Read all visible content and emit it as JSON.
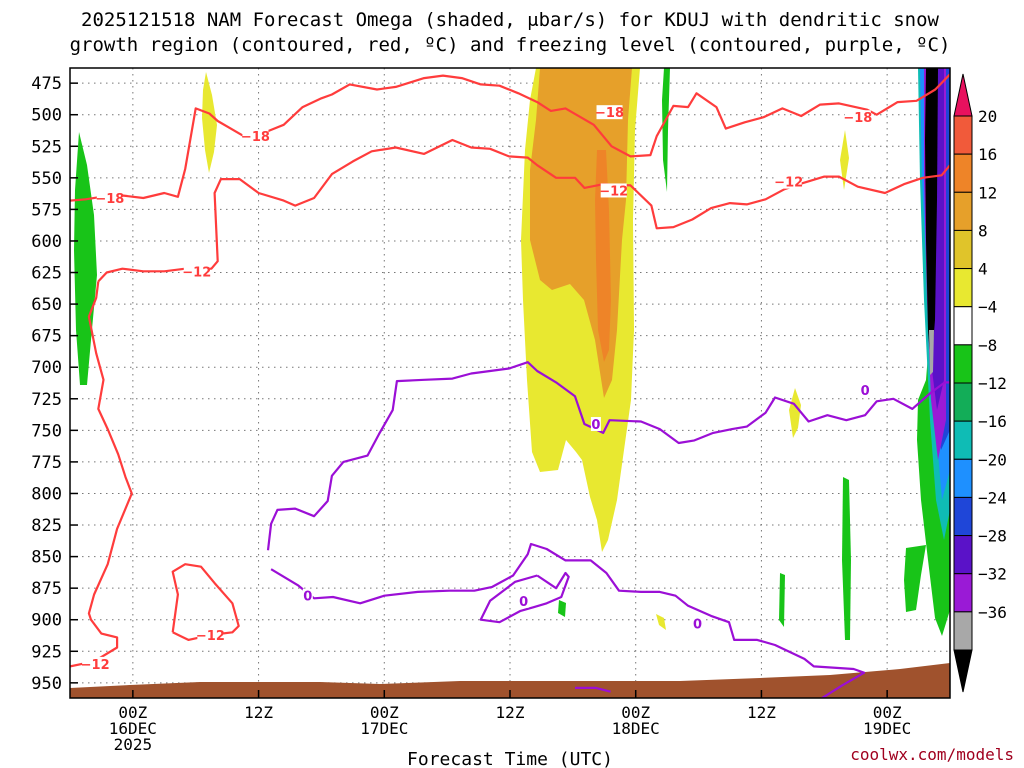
{
  "chart_data": {
    "type": "heatmap",
    "title_lines": [
      "2025121518 NAM Forecast Omega (shaded, μbar/s) for KDUJ with dendritic snow",
      "growth region (contoured, red, ºC) and freezing level (contoured, purple, ºC)"
    ],
    "xlabel": "Forecast Time (UTC)",
    "credit": "coolwx.com/models",
    "x_range_hours": [
      0,
      84
    ],
    "y_range_hpa": [
      962,
      463
    ],
    "y_ticks": [
      475,
      500,
      525,
      550,
      575,
      600,
      625,
      650,
      675,
      700,
      725,
      750,
      775,
      800,
      825,
      850,
      875,
      900,
      925,
      950
    ],
    "x_ticks": [
      {
        "hour": 6,
        "lines": [
          "00Z",
          "16DEC",
          "2025"
        ]
      },
      {
        "hour": 18,
        "lines": [
          "12Z"
        ]
      },
      {
        "hour": 30,
        "lines": [
          "00Z",
          "17DEC"
        ]
      },
      {
        "hour": 42,
        "lines": [
          "12Z"
        ]
      },
      {
        "hour": 54,
        "lines": [
          "00Z",
          "18DEC"
        ]
      },
      {
        "hour": 66,
        "lines": [
          "12Z"
        ]
      },
      {
        "hour": 78,
        "lines": [
          "00Z",
          "19DEC"
        ]
      }
    ],
    "colorbar": {
      "levels": [
        "20",
        "16",
        "12",
        "8",
        "4",
        "−4",
        "−8",
        "−12",
        "−16",
        "−20",
        "−24",
        "−28",
        "−32",
        "−36"
      ],
      "colors": [
        "#e8115e",
        "#f15a3a",
        "#ee8428",
        "#e6a02a",
        "#e0c42a",
        "#e8e830",
        "#ffffff",
        "#18c418",
        "#13ad58",
        "#0fbcb5",
        "#1e90ff",
        "#1f46d8",
        "#5a12c8",
        "#9a1ad6",
        "#a8a8a8",
        "#000000"
      ]
    },
    "contour_labels": {
      "dgz_minus18": "−18",
      "dgz_minus12": "−12",
      "freezing": "0"
    },
    "series": [
      {
        "name": "dgz_-18C_upper",
        "color": "#ff3c3c",
        "points": [
          [
            0,
            568
          ],
          [
            1.5,
            567
          ],
          [
            3,
            565
          ],
          [
            5,
            564
          ],
          [
            7,
            566
          ],
          [
            9,
            562
          ],
          [
            10.3,
            565
          ],
          [
            11,
            543
          ],
          [
            12,
            495
          ],
          [
            13.3,
            499
          ],
          [
            14.1,
            505
          ],
          [
            16.8,
            518
          ],
          [
            18.6,
            514
          ],
          [
            20.4,
            508
          ],
          [
            22.2,
            494
          ],
          [
            24,
            487
          ],
          [
            25,
            484
          ],
          [
            26.7,
            476
          ],
          [
            29.3,
            480
          ],
          [
            31.1,
            478
          ],
          [
            33.8,
            471
          ],
          [
            35.6,
            469
          ],
          [
            37.4,
            471
          ],
          [
            39.2,
            476
          ],
          [
            41,
            477
          ],
          [
            42.8,
            483
          ],
          [
            44.6,
            490
          ],
          [
            45.9,
            497
          ],
          [
            47.3,
            495
          ],
          [
            50,
            508
          ],
          [
            51.7,
            525
          ],
          [
            53.5,
            533
          ],
          [
            55.4,
            532
          ],
          [
            56,
            517
          ],
          [
            57.6,
            493
          ],
          [
            59,
            494
          ],
          [
            59.8,
            483
          ],
          [
            61.7,
            494
          ],
          [
            62.6,
            511
          ],
          [
            64.4,
            506
          ],
          [
            66.2,
            502
          ],
          [
            68,
            495
          ],
          [
            69.8,
            501
          ],
          [
            71.6,
            492
          ],
          [
            73.4,
            491
          ],
          [
            76.1,
            496
          ],
          [
            77,
            500
          ],
          [
            79,
            490
          ],
          [
            80.8,
            489
          ],
          [
            82.6,
            480
          ],
          [
            84,
            468
          ]
        ]
      },
      {
        "name": "dgz_-12C_upper",
        "color": "#ff3c3c",
        "points": [
          [
            2.7,
            632
          ],
          [
            3.5,
            625
          ],
          [
            5,
            622
          ],
          [
            7,
            624
          ],
          [
            9,
            624
          ],
          [
            11,
            622
          ],
          [
            13.5,
            622
          ],
          [
            14.1,
            616
          ],
          [
            13.8,
            562
          ],
          [
            14.4,
            551
          ],
          [
            16.2,
            551
          ],
          [
            18,
            562
          ],
          [
            20.4,
            568
          ],
          [
            21.5,
            572
          ],
          [
            23.3,
            566
          ],
          [
            25,
            547
          ],
          [
            27,
            537
          ],
          [
            28.8,
            529
          ],
          [
            31.1,
            526
          ],
          [
            33.8,
            531
          ],
          [
            36.5,
            520
          ],
          [
            38.3,
            526
          ],
          [
            40.1,
            527
          ],
          [
            41.9,
            533
          ],
          [
            43.7,
            534
          ],
          [
            44.6,
            540
          ],
          [
            46.4,
            550
          ],
          [
            48.2,
            550
          ],
          [
            49.1,
            558
          ],
          [
            50.9,
            555
          ],
          [
            53.5,
            556
          ],
          [
            55.5,
            572
          ],
          [
            56,
            590
          ],
          [
            57.6,
            589
          ],
          [
            59.4,
            583
          ],
          [
            61.2,
            574
          ],
          [
            63,
            570
          ],
          [
            64.6,
            571
          ],
          [
            66.4,
            567
          ],
          [
            68.2,
            559
          ],
          [
            70,
            554
          ],
          [
            72,
            549
          ],
          [
            73.4,
            549
          ],
          [
            75.2,
            557
          ],
          [
            77.8,
            562
          ],
          [
            79.6,
            555
          ],
          [
            81.4,
            550
          ],
          [
            83.2,
            548
          ],
          [
            84,
            540
          ]
        ]
      },
      {
        "name": "dgz_-12C_lower_left",
        "color": "#ff3c3c",
        "points": [
          [
            0,
            937
          ],
          [
            2.3,
            933
          ],
          [
            4.5,
            922
          ],
          [
            4.5,
            914
          ],
          [
            3,
            911
          ],
          [
            2,
            900
          ],
          [
            1.8,
            895
          ],
          [
            2.3,
            880
          ],
          [
            3.6,
            856
          ],
          [
            4.5,
            828
          ],
          [
            5.9,
            800
          ],
          [
            5.3,
            787
          ],
          [
            4.6,
            769
          ],
          [
            3.6,
            749
          ],
          [
            2.7,
            733
          ],
          [
            3.2,
            710
          ],
          [
            2.5,
            689
          ],
          [
            1.8,
            660
          ],
          [
            2.5,
            645
          ],
          [
            2.7,
            632
          ]
        ]
      },
      {
        "name": "dgz_-12C_closed_loop",
        "color": "#ff3c3c",
        "points": [
          [
            9.8,
            910
          ],
          [
            10.3,
            880
          ],
          [
            9.8,
            862
          ],
          [
            11,
            856
          ],
          [
            12.5,
            858
          ],
          [
            13.8,
            871
          ],
          [
            15.5,
            887
          ],
          [
            16.1,
            905
          ],
          [
            15.5,
            910
          ],
          [
            13.5,
            912
          ],
          [
            11.3,
            916
          ],
          [
            9.8,
            910
          ]
        ]
      },
      {
        "name": "freezing_0C_main",
        "color": "#9b0fd6",
        "points": [
          [
            18.9,
            845
          ],
          [
            19.2,
            824
          ],
          [
            19.8,
            813
          ],
          [
            21.5,
            812
          ],
          [
            23.3,
            818
          ],
          [
            24.6,
            806
          ],
          [
            25,
            786
          ],
          [
            26.1,
            775
          ],
          [
            28.4,
            770
          ],
          [
            29.5,
            753
          ],
          [
            30.8,
            734
          ],
          [
            31.2,
            711
          ],
          [
            33.8,
            710
          ],
          [
            36.5,
            709
          ],
          [
            38.3,
            705
          ],
          [
            40.1,
            703
          ],
          [
            41.9,
            701
          ],
          [
            43.7,
            696
          ],
          [
            44.6,
            703
          ],
          [
            46.4,
            712
          ],
          [
            48.2,
            723
          ],
          [
            49.1,
            745
          ],
          [
            50.9,
            752
          ],
          [
            51.5,
            742
          ],
          [
            54.5,
            743
          ],
          [
            56.3,
            749
          ],
          [
            58.1,
            760
          ],
          [
            59.6,
            758
          ],
          [
            61.4,
            752
          ],
          [
            63.2,
            749
          ],
          [
            64.6,
            747
          ],
          [
            66.4,
            736
          ],
          [
            67.3,
            724
          ],
          [
            69.1,
            729
          ],
          [
            70.5,
            743
          ],
          [
            72.3,
            738
          ],
          [
            74.1,
            742
          ],
          [
            75.9,
            738
          ],
          [
            77,
            727
          ],
          [
            78.6,
            725
          ],
          [
            80.4,
            733
          ],
          [
            82.2,
            720
          ],
          [
            83.5,
            712
          ],
          [
            84,
            712
          ]
        ]
      },
      {
        "name": "freezing_0C_lower",
        "color": "#9b0fd6",
        "points": [
          [
            19.2,
            860
          ],
          [
            21.8,
            873
          ],
          [
            23.3,
            883
          ],
          [
            25.1,
            882
          ],
          [
            27.7,
            887
          ],
          [
            30,
            881
          ],
          [
            33.2,
            878
          ],
          [
            36.2,
            877
          ],
          [
            38.6,
            877
          ],
          [
            40.3,
            874
          ],
          [
            42.3,
            865
          ],
          [
            43.7,
            848
          ],
          [
            44,
            840
          ],
          [
            45.5,
            844
          ],
          [
            47.3,
            853
          ],
          [
            49.7,
            853
          ],
          [
            51.2,
            863
          ],
          [
            52.4,
            877
          ],
          [
            54.5,
            878
          ],
          [
            56.3,
            878
          ],
          [
            57.8,
            881
          ],
          [
            59,
            889
          ],
          [
            61.2,
            897
          ],
          [
            62.9,
            902
          ],
          [
            63.4,
            916
          ],
          [
            65.6,
            916
          ],
          [
            67.3,
            920
          ],
          [
            70.1,
            931
          ],
          [
            71,
            937
          ],
          [
            74.8,
            939
          ],
          [
            75.8,
            942
          ],
          [
            73.7,
            952
          ],
          [
            71.6,
            963
          ]
        ]
      },
      {
        "name": "freezing_0C_small_loop",
        "color": "#9b0fd6",
        "points": [
          [
            44.6,
            865
          ],
          [
            42.5,
            870
          ],
          [
            40.1,
            885
          ],
          [
            39.2,
            900
          ],
          [
            41,
            902
          ],
          [
            43,
            893
          ],
          [
            44.3,
            890
          ],
          [
            45.5,
            887
          ],
          [
            46.9,
            882
          ],
          [
            47.6,
            866
          ],
          [
            47.3,
            863
          ],
          [
            46.4,
            875
          ],
          [
            44.6,
            865
          ]
        ]
      },
      {
        "name": "freezing_0C_surface_blob",
        "color": "#9b0fd6",
        "points": [
          [
            48.2,
            954
          ],
          [
            50.2,
            954
          ],
          [
            51.6,
            957
          ]
        ]
      }
    ]
  }
}
